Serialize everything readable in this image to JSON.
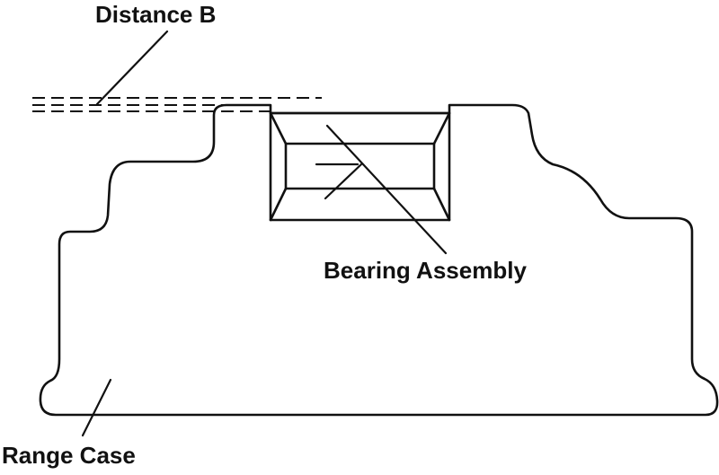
{
  "labels": {
    "distance_b": "Distance B",
    "bearing_assembly": "Bearing Assembly",
    "range_case": "Range Case"
  },
  "colors": {
    "line": "#111111",
    "background": "#ffffff"
  }
}
